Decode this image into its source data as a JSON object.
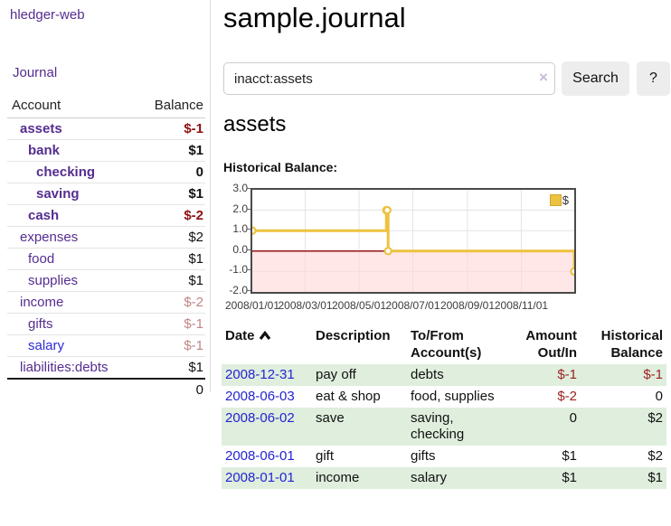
{
  "sidebar": {
    "app_title": "hledger-web",
    "journal_link": "Journal",
    "accounts": {
      "col_account": "Account",
      "col_balance": "Balance",
      "rows": [
        {
          "name": "assets",
          "balance": "$-1",
          "indent": 0,
          "bold": true,
          "neg": "strong",
          "blue": false
        },
        {
          "name": "bank",
          "balance": "$1",
          "indent": 1,
          "bold": true,
          "neg": null,
          "blue": false
        },
        {
          "name": "checking",
          "balance": "0",
          "indent": 2,
          "bold": true,
          "neg": null,
          "blue": false
        },
        {
          "name": "saving",
          "balance": "$1",
          "indent": 2,
          "bold": true,
          "neg": null,
          "blue": false
        },
        {
          "name": "cash",
          "balance": "$-2",
          "indent": 1,
          "bold": true,
          "neg": "strong",
          "blue": false
        },
        {
          "name": "expenses",
          "balance": "$2",
          "indent": 0,
          "bold": false,
          "neg": null,
          "blue": false
        },
        {
          "name": "food",
          "balance": "$1",
          "indent": 1,
          "bold": false,
          "neg": null,
          "blue": false
        },
        {
          "name": "supplies",
          "balance": "$1",
          "indent": 1,
          "bold": false,
          "neg": null,
          "blue": false
        },
        {
          "name": "income",
          "balance": "$-2",
          "indent": 0,
          "bold": false,
          "neg": "muted",
          "blue": false
        },
        {
          "name": "gifts",
          "balance": "$-1",
          "indent": 1,
          "bold": false,
          "neg": "muted",
          "blue": false
        },
        {
          "name": "salary",
          "balance": "$-1",
          "indent": 1,
          "bold": false,
          "neg": "muted",
          "blue": true
        },
        {
          "name": "liabilities:debts",
          "balance": "$1",
          "indent": 0,
          "bold": false,
          "neg": null,
          "blue": false
        }
      ],
      "total": "0"
    }
  },
  "main": {
    "title": "sample.journal",
    "search": {
      "value": "inacct:assets",
      "clear": "×",
      "search_button": "Search",
      "help_button": "?"
    },
    "account_heading": "assets",
    "section_label": "Historical Balance:"
  },
  "register": {
    "headers": {
      "date": "Date",
      "description": "Description",
      "accounts": "To/From Account(s)",
      "amount": "Amount Out/In",
      "balance": "Historical Balance"
    },
    "rows": [
      {
        "date": "2008-12-31",
        "description": "pay off",
        "accounts": "debts",
        "amount": "$-1",
        "balance": "$-1",
        "amount_neg": true,
        "balance_neg": true,
        "shaded": true
      },
      {
        "date": "2008-06-03",
        "description": "eat & shop",
        "accounts": "food, supplies",
        "amount": "$-2",
        "balance": "0",
        "amount_neg": true,
        "balance_neg": false,
        "shaded": false
      },
      {
        "date": "2008-06-02",
        "description": "save",
        "accounts": "saving, checking",
        "amount": "0",
        "balance": "$2",
        "amount_neg": false,
        "balance_neg": false,
        "shaded": true
      },
      {
        "date": "2008-06-01",
        "description": "gift",
        "accounts": "gifts",
        "amount": "$1",
        "balance": "$2",
        "amount_neg": false,
        "balance_neg": false,
        "shaded": false
      },
      {
        "date": "2008-01-01",
        "description": "income",
        "accounts": "salary",
        "amount": "$1",
        "balance": "$1",
        "amount_neg": false,
        "balance_neg": false,
        "shaded": true
      }
    ]
  },
  "chart_data": {
    "type": "line",
    "style": "steps",
    "title": "Historical Balance",
    "series": [
      {
        "name": "$",
        "color": "#edc240",
        "points": [
          [
            "2008-01-01",
            1
          ],
          [
            "2008-06-01",
            2
          ],
          [
            "2008-06-02",
            2
          ],
          [
            "2008-06-03",
            0
          ],
          [
            "2008-12-31",
            -1
          ]
        ]
      }
    ],
    "x_domain": [
      "2008-01-01",
      "2008-12-31"
    ],
    "ylim": [
      -2,
      3
    ],
    "yticks": [
      3.0,
      2.0,
      1.0,
      0.0,
      -1.0,
      -2.0
    ],
    "xticks": [
      "2008/01/01",
      "2008/03/01",
      "2008/05/01",
      "2008/07/01",
      "2008/09/01",
      "2008/11/01"
    ],
    "legend_position": "top-right",
    "grid": true,
    "colors": {
      "grid": "#e3e3e3",
      "border": "#4a4a4a",
      "negative_fill": "#ffd9d9",
      "zero_line": "#8b0000",
      "marker_fill": "#ffffff"
    }
  }
}
